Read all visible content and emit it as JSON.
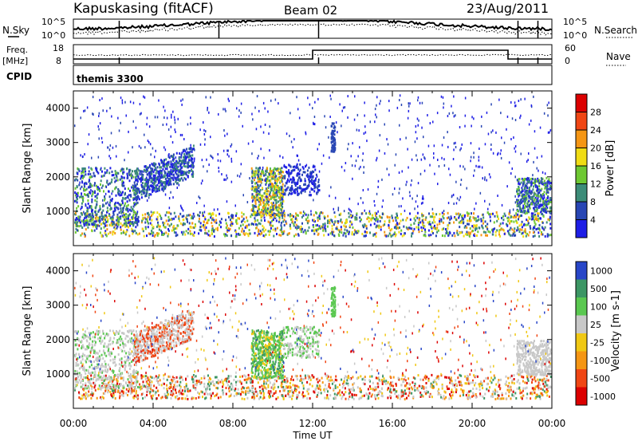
{
  "header": {
    "station": "Kapuskasing (fitACF)",
    "beam": "Beam 02",
    "date": "23/Aug/2011"
  },
  "noise_panel": {
    "left_label": "N.Sky",
    "right_label": "N.Search",
    "y_top_left": "10^5",
    "y_bottom_left": "10^0",
    "y_top_right": "10^5",
    "y_bottom_right": "10^0"
  },
  "freq_panel": {
    "left_label_1": "Freq.",
    "left_label_2": "[MHz]",
    "left_top": "18",
    "left_bottom": "8",
    "right_label": "Nave",
    "right_top": "60",
    "right_bottom": "0"
  },
  "cpid_panel": {
    "label": "CPID",
    "program": "themis 3300"
  },
  "axes": {
    "ylabel": "Slant Range [km]",
    "xlabel": "Time UT",
    "yticks": [
      "1000",
      "2000",
      "3000",
      "4000"
    ],
    "xticks": [
      "00:00",
      "04:00",
      "08:00",
      "12:00",
      "16:00",
      "20:00",
      "00:00"
    ]
  },
  "power_colorbar": {
    "label": "Power [dB]",
    "ticks": [
      "4",
      "8",
      "12",
      "16",
      "20",
      "24",
      "28"
    ],
    "colors": [
      "#1e1ee6",
      "#2846b4",
      "#3c8c78",
      "#6ec832",
      "#f0dc14",
      "#f59614",
      "#f04614",
      "#dc0000"
    ]
  },
  "velocity_colorbar": {
    "label": "Velocity [m s-1]",
    "ticks": [
      "1000",
      "500",
      "100",
      "25",
      "-25",
      "-100",
      "-500",
      "-1000"
    ],
    "colors": [
      "#2846c8",
      "#3c9664",
      "#5ac850",
      "#c8c8c8",
      "#f0c814",
      "#f59614",
      "#f04614",
      "#dc0000"
    ]
  },
  "chart_data": {
    "type": "heatmap",
    "x_range": [
      "00:00",
      "24:00"
    ],
    "ylim": [
      0,
      4500
    ],
    "panels": [
      "Power [dB]",
      "Velocity [m s-1]"
    ],
    "freq_mhz_approx": [
      [
        0,
        10.5
      ],
      [
        12.0,
        13.5
      ],
      [
        21.8,
        10.5
      ],
      [
        24,
        10.5
      ]
    ]
  }
}
